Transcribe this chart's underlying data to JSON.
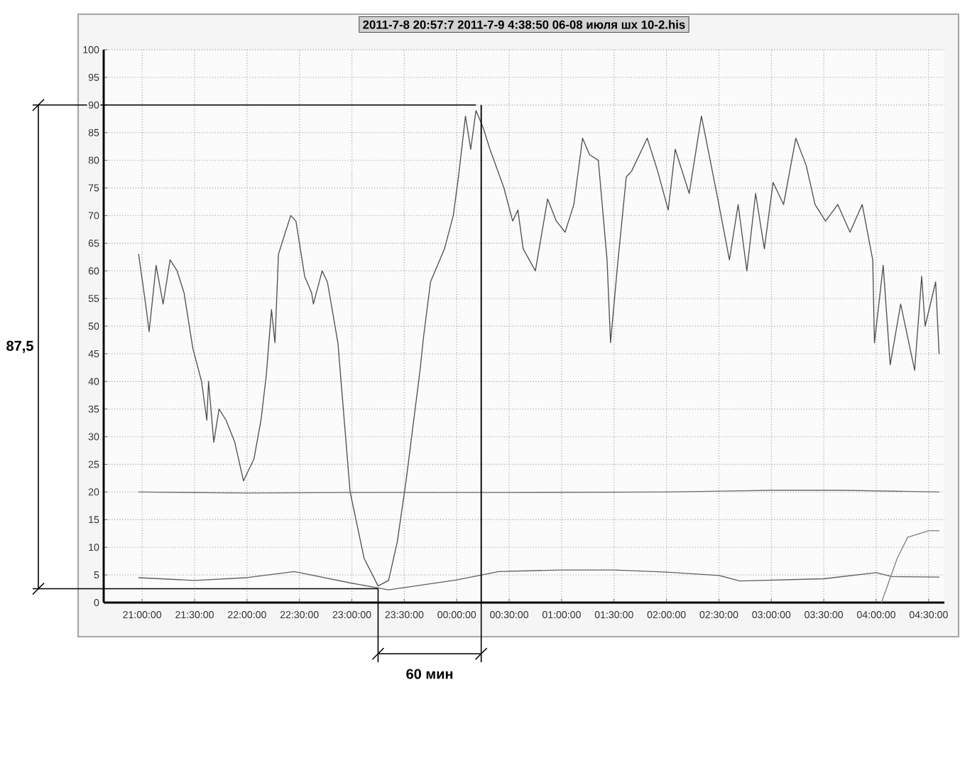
{
  "chart_data": {
    "type": "line",
    "title": "2011-7-8 20:57:7 2011-7-9 4:38:50 06-08 июля шх 10-2.his",
    "xlim": [
      "2011-07-08T20:38",
      "2011-07-09T04:39"
    ],
    "xticks": [
      {
        "value": "2011-07-08T21:00",
        "label": "21:00:00"
      },
      {
        "value": "2011-07-08T21:30",
        "label": "21:30:00"
      },
      {
        "value": "2011-07-08T22:00",
        "label": "22:00:00"
      },
      {
        "value": "2011-07-08T22:30",
        "label": "22:30:00"
      },
      {
        "value": "2011-07-08T23:00",
        "label": "23:00:00"
      },
      {
        "value": "2011-07-08T23:30",
        "label": "23:30:00"
      },
      {
        "value": "2011-07-09T00:00",
        "label": "00:00:00"
      },
      {
        "value": "2011-07-09T00:30",
        "label": "00:30:00"
      },
      {
        "value": "2011-07-09T01:00",
        "label": "01:00:00"
      },
      {
        "value": "2011-07-09T01:30",
        "label": "01:30:00"
      },
      {
        "value": "2011-07-09T02:00",
        "label": "02:00:00"
      },
      {
        "value": "2011-07-09T02:30",
        "label": "02:30:00"
      },
      {
        "value": "2011-07-09T03:00",
        "label": "03:00:00"
      },
      {
        "value": "2011-07-09T03:30",
        "label": "03:30:00"
      },
      {
        "value": "2011-07-09T04:00",
        "label": "04:00:00"
      },
      {
        "value": "2011-07-09T04:30",
        "label": "04:30:00"
      }
    ],
    "ylim": [
      0,
      100
    ],
    "yticks": [
      0,
      5,
      10,
      15,
      20,
      25,
      30,
      35,
      40,
      45,
      50,
      55,
      60,
      65,
      70,
      75,
      80,
      85,
      90,
      95,
      100
    ],
    "grid": true,
    "series": [
      {
        "color": "#505050",
        "x": [
          "2011-07-08T20:58",
          "2011-07-08T21:02",
          "2011-07-08T21:04",
          "2011-07-08T21:08",
          "2011-07-08T21:12",
          "2011-07-08T21:16",
          "2011-07-08T21:20",
          "2011-07-08T21:24",
          "2011-07-08T21:29",
          "2011-07-08T21:34",
          "2011-07-08T21:37",
          "2011-07-08T21:38",
          "2011-07-08T21:41",
          "2011-07-08T21:44",
          "2011-07-08T21:48",
          "2011-07-08T21:53",
          "2011-07-08T21:58",
          "2011-07-08T22:04",
          "2011-07-08T22:08",
          "2011-07-08T22:11",
          "2011-07-08T22:14",
          "2011-07-08T22:16",
          "2011-07-08T22:18",
          "2011-07-08T22:20",
          "2011-07-08T22:25",
          "2011-07-08T22:28",
          "2011-07-08T22:33",
          "2011-07-08T22:37",
          "2011-07-08T22:38",
          "2011-07-08T22:43",
          "2011-07-08T22:46",
          "2011-07-08T22:52",
          "2011-07-08T22:59",
          "2011-07-08T23:07",
          "2011-07-08T23:15",
          "2011-07-08T23:21",
          "2011-07-08T23:26",
          "2011-07-08T23:31",
          "2011-07-08T23:39",
          "2011-07-08T23:41",
          "2011-07-08T23:45",
          "2011-07-08T23:53",
          "2011-07-08T23:58",
          "2011-07-09T00:01",
          "2011-07-09T00:05",
          "2011-07-09T00:08",
          "2011-07-09T00:11",
          "2011-07-09T00:15",
          "2011-07-09T00:19",
          "2011-07-09T00:27",
          "2011-07-09T00:32",
          "2011-07-09T00:35",
          "2011-07-09T00:38",
          "2011-07-09T00:45",
          "2011-07-09T00:52",
          "2011-07-09T00:57",
          "2011-07-09T01:02",
          "2011-07-09T01:07",
          "2011-07-09T01:12",
          "2011-07-09T01:16",
          "2011-07-09T01:21",
          "2011-07-09T01:26",
          "2011-07-09T01:28",
          "2011-07-09T01:32",
          "2011-07-09T01:37",
          "2011-07-09T01:40",
          "2011-07-09T01:49",
          "2011-07-09T01:55",
          "2011-07-09T02:01",
          "2011-07-09T02:05",
          "2011-07-09T02:13",
          "2011-07-09T02:20",
          "2011-07-09T02:25",
          "2011-07-09T02:30",
          "2011-07-09T02:36",
          "2011-07-09T02:41",
          "2011-07-09T02:46",
          "2011-07-09T02:51",
          "2011-07-09T02:56",
          "2011-07-09T03:01",
          "2011-07-09T03:07",
          "2011-07-09T03:14",
          "2011-07-09T03:20",
          "2011-07-09T03:25",
          "2011-07-09T03:31",
          "2011-07-09T03:38",
          "2011-07-09T03:45",
          "2011-07-09T03:52",
          "2011-07-09T03:58",
          "2011-07-09T03:59",
          "2011-07-09T04:04",
          "2011-07-09T04:08",
          "2011-07-09T04:14",
          "2011-07-09T04:22",
          "2011-07-09T04:26",
          "2011-07-09T04:28",
          "2011-07-09T04:34",
          "2011-07-09T04:36"
        ],
        "values": [
          63,
          54,
          49,
          61,
          54,
          62,
          60,
          56,
          46,
          40,
          33,
          40,
          29,
          35,
          33,
          29,
          22,
          26,
          33,
          41,
          53,
          47,
          63,
          65,
          70,
          69,
          59,
          56,
          54,
          60,
          58,
          47,
          20,
          8,
          3,
          4,
          11,
          22,
          42,
          48,
          58,
          64,
          70,
          77,
          88,
          82,
          89,
          86,
          82,
          75,
          69,
          71,
          64,
          60,
          73,
          69,
          67,
          72,
          84,
          81,
          80,
          62,
          47,
          61,
          77,
          78,
          84,
          78,
          71,
          82,
          74,
          88,
          80,
          72,
          62,
          72,
          60,
          74,
          64,
          76,
          72,
          84,
          79,
          72,
          69,
          72,
          67,
          72,
          62,
          47,
          61,
          43,
          54,
          42,
          59,
          50,
          58,
          45
        ]
      },
      {
        "color": "#707070",
        "x": [
          "2011-07-08T20:58",
          "2011-07-08T22:00",
          "2011-07-08T23:00",
          "2011-07-09T00:30",
          "2011-07-09T02:00",
          "2011-07-09T03:00",
          "2011-07-09T03:42",
          "2011-07-09T04:36"
        ],
        "values": [
          20,
          19.8,
          19.9,
          19.9,
          20,
          20.3,
          20.3,
          20
        ]
      },
      {
        "color": "#606060",
        "x": [
          "2011-07-08T20:58",
          "2011-07-08T21:30",
          "2011-07-08T22:00",
          "2011-07-08T22:27",
          "2011-07-08T23:00",
          "2011-07-08T23:21",
          "2011-07-09T00:00",
          "2011-07-09T00:24",
          "2011-07-09T01:00",
          "2011-07-09T01:30",
          "2011-07-09T02:00",
          "2011-07-09T02:30",
          "2011-07-09T02:42",
          "2011-07-09T03:30",
          "2011-07-09T04:00",
          "2011-07-09T04:09",
          "2011-07-09T04:36"
        ],
        "values": [
          4.5,
          4,
          4.5,
          5.6,
          3.5,
          2.3,
          4.1,
          5.6,
          5.9,
          5.9,
          5.5,
          4.9,
          3.9,
          4.3,
          5.4,
          4.7,
          4.6
        ]
      },
      {
        "color": "#808080",
        "x": [
          "2011-07-09T04:03",
          "2011-07-09T04:12",
          "2011-07-09T04:18",
          "2011-07-09T04:30",
          "2011-07-09T04:36"
        ],
        "values": [
          0,
          8,
          11.8,
          13,
          13
        ]
      }
    ],
    "ref_lines": [
      {
        "axis": "y",
        "value": 90,
        "color": "#000000"
      },
      {
        "axis": "y",
        "value": 2.5,
        "color": "#000000"
      },
      {
        "axis": "x",
        "value": "2011-07-09T00:14",
        "color": "#000000"
      }
    ],
    "annotations": [
      "87,5",
      "60 мин"
    ]
  }
}
